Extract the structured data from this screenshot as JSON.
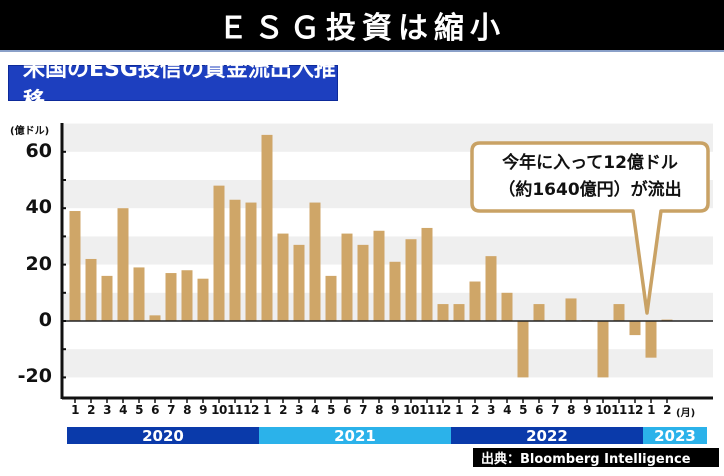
{
  "header": {
    "title": "ＥＳＧ投資は縮小",
    "subtitle": "米国のESG投信の資金流出入推移"
  },
  "chart_data": {
    "type": "bar",
    "title": "米国のESG投信の資金流出入推移",
    "ylabel": "(億ドル)",
    "xlabel": "(月)",
    "ylim": [
      -25,
      73
    ],
    "yticks": [
      60,
      40,
      20,
      0,
      -20
    ],
    "grid": "alternating horizontal bands every 10",
    "bar_color": "#cfa668",
    "years": [
      {
        "label": "2020",
        "months": 12,
        "color": "#0a3aaa"
      },
      {
        "label": "2021",
        "months": 12,
        "color": "#2bb2ea"
      },
      {
        "label": "2022",
        "months": 12,
        "color": "#0a3aaa"
      },
      {
        "label": "2023",
        "months": 2,
        "color": "#2bb2ea"
      }
    ],
    "categories": [
      "2020-1",
      "2020-2",
      "2020-3",
      "2020-4",
      "2020-5",
      "2020-6",
      "2020-7",
      "2020-8",
      "2020-9",
      "2020-10",
      "2020-11",
      "2020-12",
      "2021-1",
      "2021-2",
      "2021-3",
      "2021-4",
      "2021-5",
      "2021-6",
      "2021-7",
      "2021-8",
      "2021-9",
      "2021-10",
      "2021-11",
      "2021-12",
      "2022-1",
      "2022-2",
      "2022-3",
      "2022-4",
      "2022-5",
      "2022-6",
      "2022-7",
      "2022-8",
      "2022-9",
      "2022-10",
      "2022-11",
      "2022-12",
      "2023-1",
      "2023-2"
    ],
    "month_labels": [
      "1",
      "2",
      "3",
      "4",
      "5",
      "6",
      "7",
      "8",
      "9",
      "10",
      "11",
      "12",
      "1",
      "2",
      "3",
      "4",
      "5",
      "6",
      "7",
      "8",
      "9",
      "10",
      "11",
      "12",
      "1",
      "2",
      "3",
      "4",
      "5",
      "6",
      "7",
      "8",
      "9",
      "10",
      "11",
      "12",
      "1",
      "2"
    ],
    "values": [
      39,
      22,
      16,
      40,
      19,
      2,
      17,
      18,
      15,
      48,
      43,
      42,
      66,
      31,
      27,
      42,
      16,
      31,
      27,
      32,
      21,
      29,
      33,
      6,
      6,
      14,
      23,
      10,
      -20,
      6,
      0.3,
      8,
      0.3,
      -20,
      6,
      -5,
      -13,
      0.5
    ],
    "annotation": {
      "line1": "今年に入って12億ドル",
      "line2": "（約1640億円）が流出",
      "points_to": "2023-2"
    }
  },
  "source": "出典：Bloomberg Intelligence"
}
